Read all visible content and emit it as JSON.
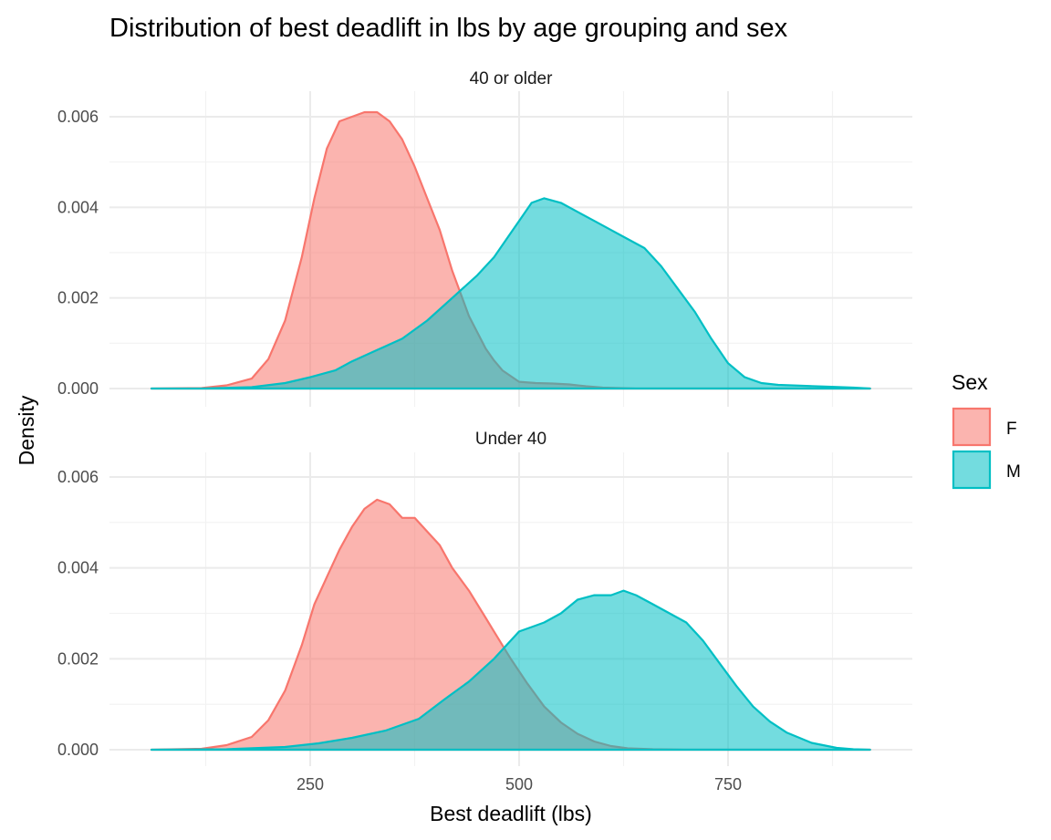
{
  "chart_data": {
    "type": "area",
    "title": "Distribution of best deadlift in lbs by age grouping and sex",
    "xlabel": "Best deadlift (lbs)",
    "ylabel": "Density",
    "xlim": [
      40,
      940
    ],
    "ylim": [
      0,
      0.0062
    ],
    "x_ticks": [
      250,
      500,
      750
    ],
    "x_minor_ticks": [
      125,
      375,
      625,
      875
    ],
    "y_ticks": [
      0,
      0.002,
      0.004,
      0.006
    ],
    "y_tick_labels": [
      "0.000",
      "0.002",
      "0.004",
      "0.006"
    ],
    "y_minor_ticks": [
      0.001,
      0.003,
      0.005
    ],
    "grid": true,
    "legend": {
      "title": "Sex",
      "placement": "right",
      "entries": [
        {
          "label": "F",
          "fill": "#F8766D",
          "stroke": "#F8766D"
        },
        {
          "label": "M",
          "fill": "#00BFC4",
          "stroke": "#00BFC4"
        }
      ]
    },
    "panels": [
      {
        "label": "40 or older",
        "series": [
          {
            "name": "F",
            "color": "#F8766D",
            "x": [
              60,
              120,
              150,
              180,
              200,
              220,
              240,
              255,
              270,
              285,
              300,
              315,
              330,
              345,
              360,
              375,
              390,
              405,
              420,
              440,
              460,
              470,
              480,
              500,
              520,
              540,
              560,
              580,
              600,
              620,
              640,
              660,
              700,
              920
            ],
            "y": [
              0,
              1e-05,
              7e-05,
              0.00022,
              0.00065,
              0.0015,
              0.0029,
              0.0042,
              0.0053,
              0.0059,
              0.006,
              0.0061,
              0.0061,
              0.0059,
              0.0055,
              0.0049,
              0.0042,
              0.0035,
              0.0026,
              0.0016,
              0.00088,
              0.00062,
              0.0004,
              0.00015,
              0.00012,
              0.00011,
              9e-05,
              5e-05,
              2e-05,
              1e-05,
              0,
              0,
              0,
              0
            ]
          },
          {
            "name": "M",
            "color": "#00BFC4",
            "x": [
              60,
              120,
              180,
              220,
              250,
              280,
              300,
              330,
              360,
              390,
              420,
              450,
              470,
              500,
              515,
              530,
              550,
              570,
              590,
              610,
              630,
              650,
              670,
              690,
              710,
              730,
              750,
              770,
              790,
              810,
              840,
              870,
              900,
              920
            ],
            "y": [
              0,
              0,
              3e-05,
              0.00012,
              0.00025,
              0.0004,
              0.0006,
              0.00085,
              0.0011,
              0.0015,
              0.002,
              0.0025,
              0.0029,
              0.0037,
              0.0041,
              0.0042,
              0.0041,
              0.0039,
              0.0037,
              0.0035,
              0.0033,
              0.0031,
              0.0027,
              0.0022,
              0.0017,
              0.0011,
              0.00056,
              0.00025,
              0.00012,
              8e-05,
              6e-05,
              4e-05,
              2e-05,
              0
            ]
          }
        ]
      },
      {
        "label": "Under 40",
        "series": [
          {
            "name": "F",
            "color": "#F8766D",
            "x": [
              60,
              120,
              150,
              180,
              200,
              220,
              240,
              255,
              270,
              285,
              300,
              315,
              330,
              345,
              360,
              375,
              390,
              405,
              420,
              440,
              460,
              470,
              490,
              510,
              530,
              550,
              570,
              590,
              610,
              630,
              660,
              700,
              920
            ],
            "y": [
              0,
              2e-05,
              0.0001,
              0.00028,
              0.00065,
              0.0013,
              0.0023,
              0.0032,
              0.0038,
              0.0044,
              0.0049,
              0.0053,
              0.0055,
              0.0054,
              0.0051,
              0.0051,
              0.0048,
              0.0045,
              0.004,
              0.0035,
              0.0029,
              0.0026,
              0.002,
              0.00145,
              0.00095,
              0.0006,
              0.00035,
              0.00018,
              8e-05,
              3e-05,
              1e-05,
              0,
              0
            ]
          },
          {
            "name": "M",
            "color": "#00BFC4",
            "x": [
              60,
              150,
              220,
              260,
              300,
              340,
              380,
              410,
              440,
              470,
              500,
              515,
              530,
              550,
              570,
              590,
              610,
              625,
              640,
              660,
              680,
              700,
              720,
              740,
              760,
              780,
              800,
              820,
              850,
              880,
              900,
              920
            ],
            "y": [
              0,
              1e-05,
              6e-05,
              0.00014,
              0.00026,
              0.00042,
              0.00068,
              0.0011,
              0.0015,
              0.002,
              0.0026,
              0.0027,
              0.0028,
              0.003,
              0.0033,
              0.0034,
              0.0034,
              0.0035,
              0.0034,
              0.0032,
              0.003,
              0.0028,
              0.0024,
              0.0019,
              0.0014,
              0.00095,
              0.00062,
              0.00038,
              0.00015,
              4e-05,
              1e-05,
              0
            ]
          }
        ]
      }
    ]
  }
}
